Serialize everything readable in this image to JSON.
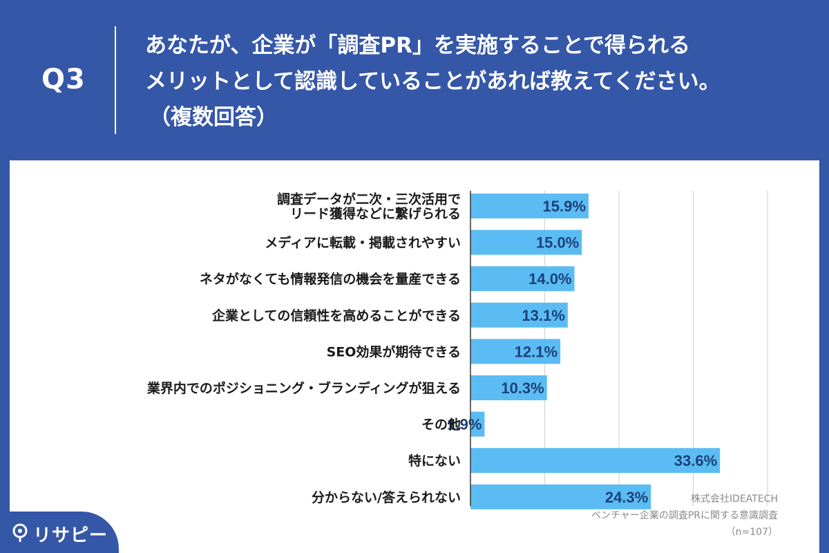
{
  "header": {
    "q_label": "Q3",
    "lines": [
      "あなたが、企業が「調査PR」を実施することで得られる",
      "メリットとして認識していることがあれば教えてください。",
      "（複数回答）"
    ]
  },
  "chart_data": {
    "type": "bar",
    "orientation": "horizontal",
    "categories": [
      [
        "調査データが二次・三次活用で",
        "リード獲得などに繋げられる"
      ],
      [
        "メディアに転載・掲載されやすい"
      ],
      [
        "ネタがなくても情報発信の機会を量産できる"
      ],
      [
        "企業としての信頼性を高めることができる"
      ],
      [
        "SEO効果が期待できる"
      ],
      [
        "業界内でのポジショニング・ブランディングが狙える"
      ],
      [
        "その他"
      ],
      [
        "特にない"
      ],
      [
        "分からない/答えられない"
      ]
    ],
    "values": [
      15.9,
      15.0,
      14.0,
      13.1,
      12.1,
      10.3,
      1.9,
      33.6,
      24.3
    ],
    "value_labels": [
      "15.9%",
      "15.0%",
      "14.0%",
      "13.1%",
      "12.1%",
      "10.3%",
      "1.9%",
      "33.6%",
      "24.3%"
    ],
    "xlim": [
      0,
      40
    ],
    "grid": true,
    "bar_color": "#5bbcf4",
    "label_color": "#1d3f78"
  },
  "credit": {
    "company": "株式会社IDEATECH",
    "survey": "ベンチャー企業の調査PRに関する意識調査",
    "sample": "（n=107）"
  },
  "brand": {
    "name": "リサピー",
    "icon": "pin-icon",
    "color": "#3557a8"
  }
}
